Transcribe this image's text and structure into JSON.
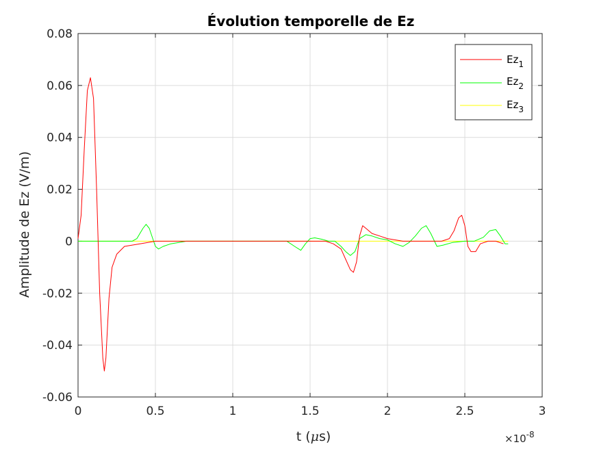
{
  "chart_data": {
    "type": "line",
    "title": "Évolution temporelle de Ez",
    "xlabel_prefix": "t (",
    "xlabel_mu": "μ",
    "xlabel_suffix": "s)",
    "ylabel": "Amplitude de Ez (V/m)",
    "x_exponent_base": "×10",
    "x_exponent_power": "-8",
    "xlim": [
      0,
      3
    ],
    "ylim": [
      -0.06,
      0.08
    ],
    "xticks": [
      0,
      0.5,
      1,
      1.5,
      2,
      2.5,
      3
    ],
    "xtick_labels": [
      "0",
      "0.5",
      "1",
      "1.5",
      "2",
      "2.5",
      "3"
    ],
    "yticks": [
      -0.06,
      -0.04,
      -0.02,
      0,
      0.02,
      0.04,
      0.06,
      0.08
    ],
    "ytick_labels": [
      "-0.06",
      "-0.04",
      "-0.02",
      "0",
      "0.02",
      "0.04",
      "0.06",
      "0.08"
    ],
    "grid": true,
    "legend_position": "top-right",
    "series": [
      {
        "name": "Ez",
        "subscript": "1",
        "color": "#ff0000",
        "x": [
          0,
          0.02,
          0.04,
          0.06,
          0.08,
          0.1,
          0.12,
          0.14,
          0.16,
          0.17,
          0.18,
          0.2,
          0.22,
          0.25,
          0.3,
          0.4,
          0.5,
          0.6,
          0.8,
          1.0,
          1.2,
          1.4,
          1.6,
          1.65,
          1.7,
          1.73,
          1.76,
          1.78,
          1.8,
          1.82,
          1.84,
          1.86,
          1.9,
          1.95,
          2.0,
          2.1,
          2.2,
          2.3,
          2.35,
          2.4,
          2.43,
          2.46,
          2.48,
          2.5,
          2.52,
          2.54,
          2.57,
          2.6,
          2.65,
          2.7,
          2.75
        ],
        "y": [
          0.001,
          0.01,
          0.035,
          0.058,
          0.063,
          0.055,
          0.02,
          -0.02,
          -0.045,
          -0.05,
          -0.045,
          -0.022,
          -0.01,
          -0.005,
          -0.002,
          -0.001,
          0,
          0,
          0,
          0,
          0,
          0,
          0,
          -0.001,
          -0.003,
          -0.007,
          -0.011,
          -0.012,
          -0.008,
          0.002,
          0.006,
          0.005,
          0.003,
          0.002,
          0.001,
          0,
          0,
          0,
          0,
          0.001,
          0.004,
          0.009,
          0.01,
          0.006,
          -0.002,
          -0.004,
          -0.004,
          -0.001,
          0,
          0,
          -0.001
        ]
      },
      {
        "name": "Ez",
        "subscript": "2",
        "color": "#00ff00",
        "x": [
          0,
          0.35,
          0.38,
          0.42,
          0.44,
          0.46,
          0.5,
          0.52,
          0.55,
          0.6,
          0.7,
          0.8,
          0.9,
          1.0,
          1.35,
          1.4,
          1.44,
          1.47,
          1.5,
          1.53,
          1.58,
          1.62,
          1.66,
          1.7,
          1.73,
          1.76,
          1.79,
          1.82,
          1.86,
          1.9,
          1.95,
          2.0,
          2.05,
          2.1,
          2.14,
          2.18,
          2.22,
          2.25,
          2.28,
          2.32,
          2.36,
          2.42,
          2.5,
          2.56,
          2.62,
          2.66,
          2.7,
          2.73,
          2.76,
          2.78
        ],
        "y": [
          0,
          0,
          0.001,
          0.005,
          0.0065,
          0.005,
          -0.002,
          -0.003,
          -0.002,
          -0.001,
          0,
          0,
          0,
          0,
          0,
          -0.002,
          -0.0035,
          -0.001,
          0.001,
          0.0013,
          0.0007,
          0,
          0,
          -0.002,
          -0.004,
          -0.0055,
          -0.004,
          0.001,
          0.0025,
          0.002,
          0.001,
          0.0005,
          -0.001,
          -0.002,
          -0.0005,
          0.002,
          0.005,
          0.006,
          0.003,
          -0.002,
          -0.0015,
          -0.0005,
          0,
          0,
          0.0015,
          0.004,
          0.0045,
          0.002,
          -0.001,
          -0.001
        ]
      },
      {
        "name": "Ez",
        "subscript": "3",
        "color": "#ffff00",
        "x": [
          0,
          2.78
        ],
        "y": [
          0,
          0
        ]
      }
    ]
  }
}
